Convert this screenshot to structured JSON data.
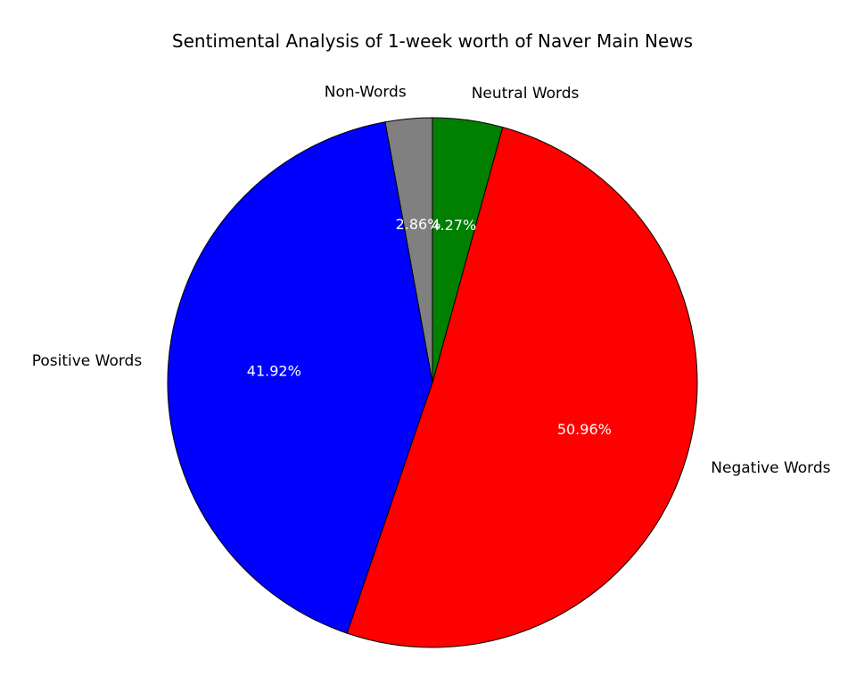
{
  "chart_data": {
    "type": "pie",
    "title": "Sentimental Analysis of 1-week worth of Naver Main News",
    "start_angle_deg": 90,
    "direction": "counterclockwise",
    "slices": [
      {
        "label": "Non-Words",
        "value": 2.86,
        "pct_label": "2.86%",
        "color": "#808080"
      },
      {
        "label": "Positive Words",
        "value": 41.92,
        "pct_label": "41.92%",
        "color": "#0000ff"
      },
      {
        "label": "Negative Words",
        "value": 50.96,
        "pct_label": "50.96%",
        "color": "#ff0000"
      },
      {
        "label": "Neutral Words",
        "value": 4.27,
        "pct_label": "4.27%",
        "color": "#008000"
      }
    ]
  }
}
